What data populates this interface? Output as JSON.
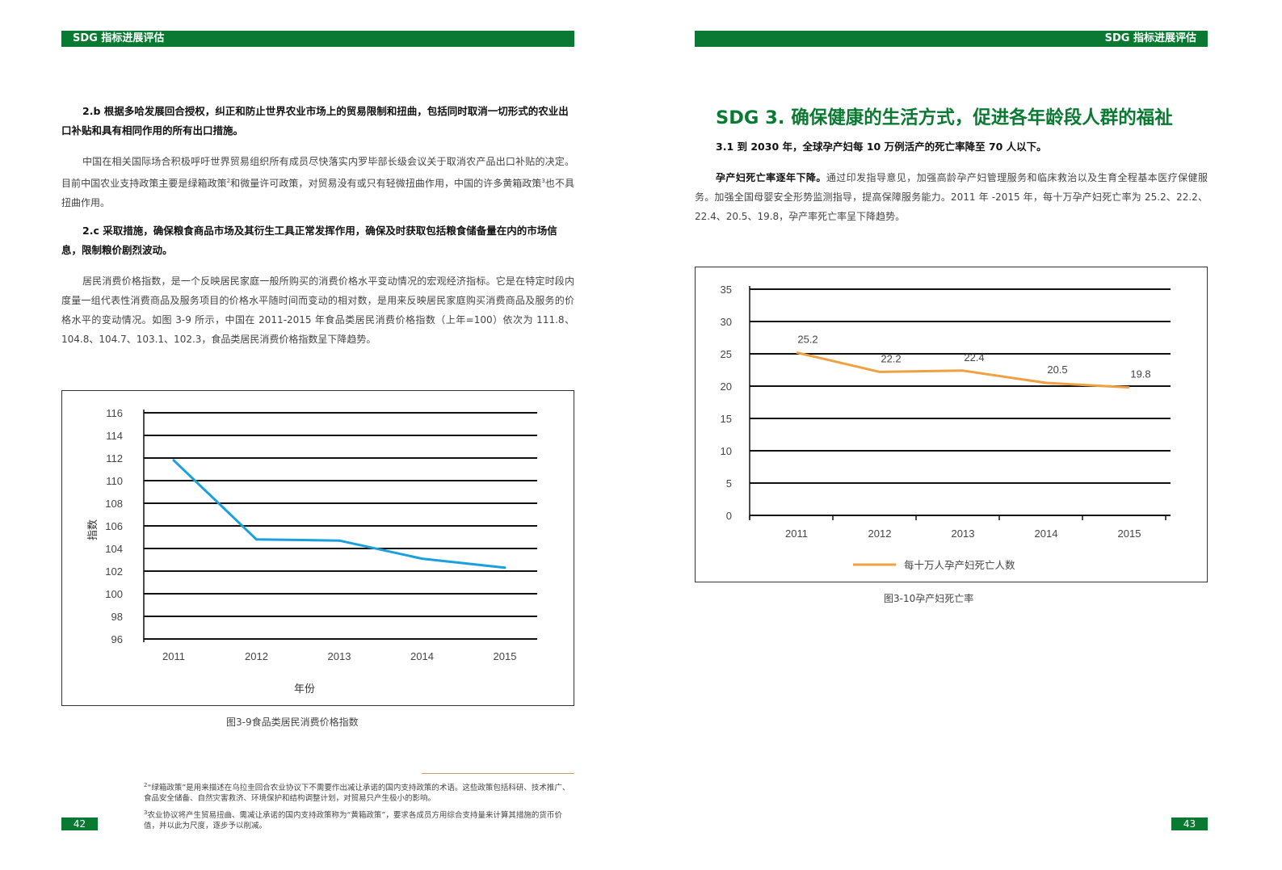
{
  "header": {
    "left": "SDG 指标进展评估",
    "right": "SDG 指标进展评估"
  },
  "left_page": {
    "sec_2b": {
      "title": "2.b 根据多哈发展回合授权，纠正和防止世界农业市场上的贸易限制和扭曲，包括同时取消一切形式的农业出口补贴和具有相同作用的所有出口措施。"
    },
    "para_2b": {
      "a": "中国在相关国际场合积极呼吁世界贸易组织所有成员尽快落实内罗毕部长级会议关于取消农产品出口补贴的决定。目前中国农业支持政策主要是绿箱政策",
      "sup1": "2",
      "b": "和微量许可政策，对贸易没有或只有轻微扭曲作用，中国的许多黄箱政策",
      "sup2": "3",
      "c": "也不具扭曲作用。"
    },
    "sec_2c": {
      "title": "2.c 采取措施，确保粮食商品市场及其衍生工具正常发挥作用，确保及时获取包括粮食储备量在内的市场信息，限制粮价剧烈波动。"
    },
    "para_2c": {
      "text": "居民消费价格指数，是一个反映居民家庭一般所购买的消费价格水平变动情况的宏观经济指标。它是在特定时段内度量一组代表性消费商品及服务项目的价格水平随时间而变动的相对数，是用来反映居民家庭购买消费商品及服务的价格水平的变动情况。如图 3-9 所示，中国在 2011-2015 年食品类居民消费价格指数（上年=100）依次为 111.8、104.8、104.7、103.1、102.3，食品类居民消费价格指数呈下降趋势。"
    },
    "caption": "图3-9食品类居民消费价格指数",
    "footnotes": {
      "fn2_num": "2",
      "fn2": "“绿箱政策”是用来描述在乌拉圭回合农业协议下不需要作出减让承诺的国内支持政策的术语。这些政策包括科研、技术推广、食品安全储备、自然灾害救济、环境保护和结构调整计划，对贸易只产生极小的影响。",
      "fn3_num": "3",
      "fn3": "农业协议将产生贸易扭曲、需减让承诺的国内支持政策称为“黄箱政策”，要求各成员方用综合支持量来计算其措施的货币价值，并以此为尺度，逐步予以削减。"
    },
    "page_number": "42"
  },
  "right_page": {
    "title": "SDG 3. 确保健康的生活方式，促进各年龄段人群的福祉",
    "sec_31": {
      "title": "3.1 到 2030 年，全球孕产妇每 10 万例活产的死亡率降至 70 人以下。"
    },
    "para_31": {
      "bold": "孕产妇死亡率逐年下降。",
      "text": "通过印发指导意见，加强高龄孕产妇管理服务和临床救治以及生育全程基本医疗保健服务。加强全国母婴安全形势监测指导，提高保障服务能力。2011 年 -2015 年，每十万孕产妇死亡率为 25.2、22.2、22.4、20.5、19.8，孕产率死亡率呈下降趋势。"
    },
    "caption": "图3-10孕产妇死亡率",
    "page_number": "43"
  },
  "chart_data": [
    {
      "type": "line",
      "categories": [
        "2011",
        "2012",
        "2013",
        "2014",
        "2015"
      ],
      "series": [
        {
          "values": [
            111.8,
            104.8,
            104.7,
            103.1,
            102.3
          ],
          "color": "#1aa0dc"
        }
      ],
      "xlabel": "年份",
      "ylabel": "指数",
      "ylim": [
        96,
        116
      ],
      "yticks": [
        "96",
        "98",
        "100",
        "102",
        "104",
        "106",
        "108",
        "110",
        "112",
        "114",
        "116"
      ],
      "grid": true
    },
    {
      "type": "line",
      "categories": [
        "2011",
        "2012",
        "2013",
        "2014",
        "2015"
      ],
      "series": [
        {
          "name": "每十万人孕产妇死亡人数",
          "values": [
            25.2,
            22.2,
            22.4,
            20.5,
            19.8
          ],
          "color": "#f0a040"
        }
      ],
      "data_labels": [
        "25.2",
        "22.2",
        "22.4",
        "20.5",
        "19.8"
      ],
      "ylim": [
        0,
        35
      ],
      "yticks": [
        "0",
        "5",
        "10",
        "15",
        "20",
        "25",
        "30",
        "35"
      ],
      "legend": "bottom",
      "grid": true
    }
  ]
}
